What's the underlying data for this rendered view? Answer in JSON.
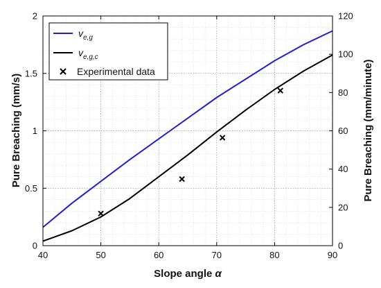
{
  "chart_data": {
    "type": "line",
    "xlabel": "Slope angle",
    "xlabel_symbol": "α",
    "ylabel_left": "Pure Breaching (mm/s)",
    "ylabel_right": "Pure Breaching (mm/minute)",
    "xlim": [
      40,
      90
    ],
    "ylim_left": [
      0,
      2
    ],
    "ylim_right": [
      0,
      120
    ],
    "x_ticks": [
      "40",
      "50",
      "60",
      "70",
      "80",
      "90"
    ],
    "y_ticks_left": [
      "0",
      "0.5",
      "1",
      "1.5",
      "2"
    ],
    "y_ticks_right": [
      "0",
      "20",
      "40",
      "60",
      "80",
      "100",
      "120"
    ],
    "grid": "dotted",
    "legend_placement": "top-left",
    "series": [
      {
        "name": "v",
        "subscript": "e,g",
        "style": "line",
        "color": "#1f1fcf",
        "x": [
          40,
          45,
          50,
          55,
          60,
          65,
          70,
          75,
          80,
          85,
          90
        ],
        "y": [
          0.16,
          0.37,
          0.56,
          0.75,
          0.93,
          1.11,
          1.29,
          1.45,
          1.61,
          1.75,
          1.87
        ]
      },
      {
        "name": "v",
        "subscript": "e,g,c",
        "style": "line",
        "color": "#000000",
        "x": [
          40,
          45,
          50,
          55,
          60,
          65,
          70,
          75,
          80,
          85,
          90
        ],
        "y": [
          0.04,
          0.13,
          0.25,
          0.41,
          0.6,
          0.79,
          0.99,
          1.18,
          1.36,
          1.52,
          1.66
        ]
      },
      {
        "name": "Experimental data",
        "style": "marker-x",
        "color": "#000000",
        "x": [
          50,
          64,
          71,
          81
        ],
        "y": [
          0.28,
          0.58,
          0.94,
          1.35
        ]
      }
    ]
  }
}
